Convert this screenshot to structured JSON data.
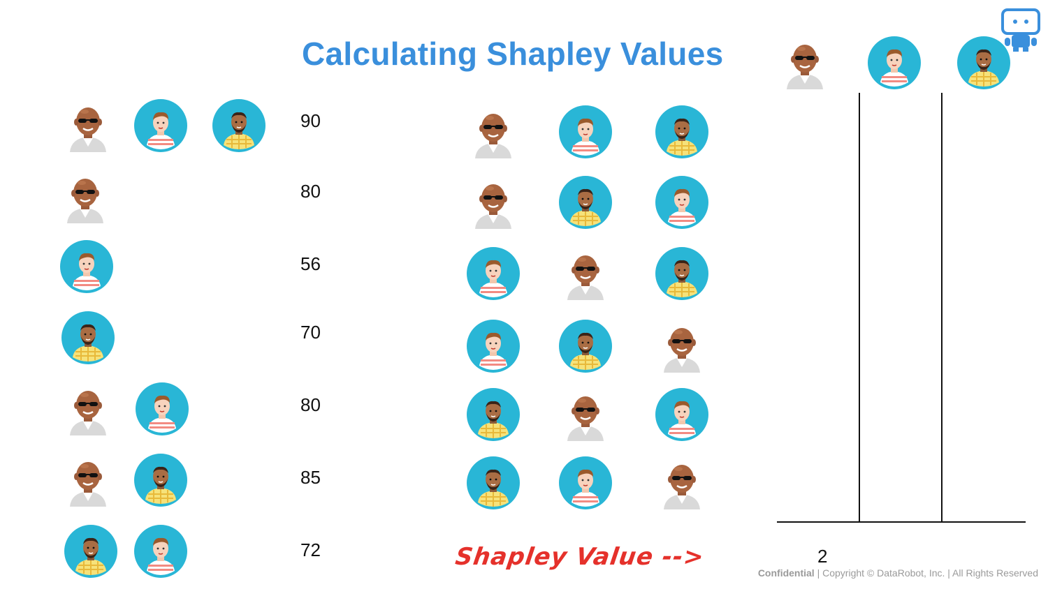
{
  "title": "Calculating Shapley Values",
  "colors": {
    "title": "#3a8fdc",
    "avatar_bg": "#29b6d6",
    "shapley_label": "#e5312b",
    "footer": "#9a9a9a"
  },
  "players": {
    "A": "bald-man-sunglasses-avatar",
    "B": "young-man-striped-shirt-avatar",
    "C": "bearded-man-plaid-shirt-avatar"
  },
  "coalitions": [
    {
      "members": [
        "A",
        "B",
        "C"
      ],
      "value": "90"
    },
    {
      "members": [
        "A"
      ],
      "value": "80"
    },
    {
      "members": [
        "B"
      ],
      "value": "56"
    },
    {
      "members": [
        "C"
      ],
      "value": "70"
    },
    {
      "members": [
        "A",
        "B"
      ],
      "value": "80"
    },
    {
      "members": [
        "A",
        "C"
      ],
      "value": "85"
    },
    {
      "members": [
        "C",
        "B"
      ],
      "value": "72"
    }
  ],
  "orderings": [
    [
      "A",
      "B",
      "C"
    ],
    [
      "A",
      "C",
      "B"
    ],
    [
      "B",
      "A",
      "C"
    ],
    [
      "B",
      "C",
      "A"
    ],
    [
      "C",
      "A",
      "B"
    ],
    [
      "C",
      "B",
      "A"
    ]
  ],
  "table_header": [
    "A",
    "B",
    "C"
  ],
  "shapley_label": "Shapley Value -->",
  "partial_value": "2",
  "footer": {
    "confidential": "Confidential",
    "copyright": " | Copyright © DataRobot, Inc. | All Rights Reserved"
  }
}
